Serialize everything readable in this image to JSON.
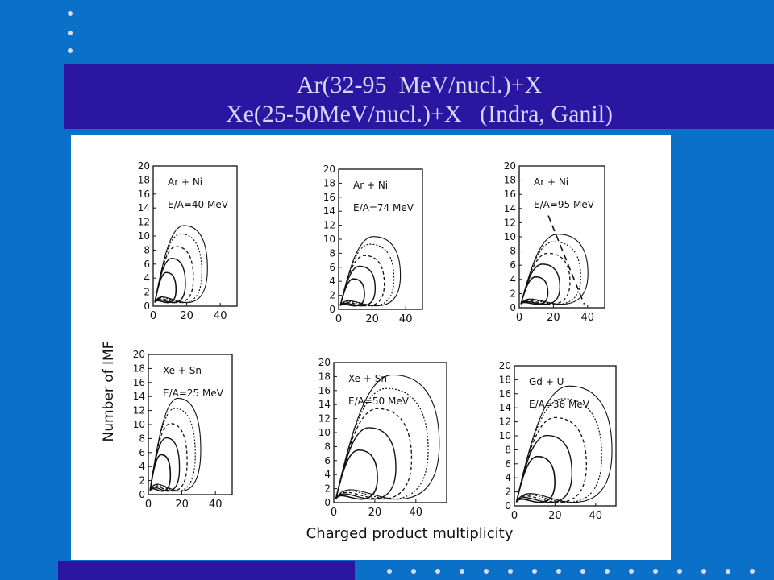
{
  "slide": {
    "title_line1": "Ar(32-95  MeV/nucl.)+X",
    "title_line2": "Xe(25-50MeV/nucl.)+X   (Indra, Ganil)",
    "colors": {
      "background": "#0a70c8",
      "title_bar": "#2a16a0",
      "title_text": "#d8d8ff",
      "figure_bg": "#ffffff"
    }
  },
  "chart_data": {
    "type": "contour",
    "ylabel": "Number of IMF",
    "xlabel": "Charged product multiplicity",
    "panels": [
      {
        "label1": "Ar + Ni",
        "label2": "E/A=40 MeV",
        "xticks": [
          "0",
          "20",
          "40"
        ],
        "yticks": [
          "20",
          "18",
          "16",
          "14",
          "12",
          "10",
          "8",
          "6",
          "4",
          "2",
          "0"
        ],
        "xlim": [
          0,
          50
        ],
        "ylim": [
          0,
          20
        ],
        "peak": [
          20,
          3
        ],
        "reach": [
          28,
          10
        ],
        "dashed_line": false
      },
      {
        "label1": "Ar + Ni",
        "label2": "E/A=74 MeV",
        "xticks": [
          "0",
          "20",
          "40"
        ],
        "yticks": [
          "20",
          "18",
          "16",
          "14",
          "12",
          "10",
          "8",
          "6",
          "4",
          "2",
          "0"
        ],
        "xlim": [
          0,
          50
        ],
        "ylim": [
          0,
          20
        ],
        "peak": [
          22,
          3
        ],
        "reach": [
          32,
          9
        ],
        "dashed_line": false
      },
      {
        "label1": "Ar + Ni",
        "label2": "E/A=95 MeV",
        "xticks": [
          "0",
          "20",
          "40"
        ],
        "yticks": [
          "20",
          "18",
          "16",
          "14",
          "12",
          "10",
          "8",
          "6",
          "4",
          "2",
          "0"
        ],
        "xlim": [
          0,
          50
        ],
        "ylim": [
          0,
          20
        ],
        "peak": [
          22,
          3
        ],
        "reach": [
          35,
          9
        ],
        "dashed_line": true
      },
      {
        "label1": "Xe + Sn",
        "label2": "E/A=25 MeV",
        "xticks": [
          "0",
          "20",
          "40"
        ],
        "yticks": [
          "20",
          "18",
          "16",
          "14",
          "12",
          "10",
          "8",
          "6",
          "4",
          "2",
          "0"
        ],
        "xlim": [
          0,
          50
        ],
        "ylim": [
          0,
          20
        ],
        "peak": [
          18,
          5
        ],
        "reach": [
          27,
          12
        ],
        "dashed_line": false
      },
      {
        "label1": "Xe + Sn",
        "label2": "E/A=50 MeV",
        "xticks": [
          "0",
          "20",
          "40"
        ],
        "yticks": [
          "20",
          "18",
          "16",
          "14",
          "12",
          "10",
          "8",
          "6",
          "4",
          "2",
          "0"
        ],
        "xlim": [
          0,
          55
        ],
        "ylim": [
          0,
          20
        ],
        "peak": [
          30,
          8
        ],
        "reach": [
          45,
          16
        ],
        "dashed_line": false
      },
      {
        "label1": "Gd + U",
        "label2": "E/A=36 MeV",
        "xticks": [
          "0",
          "20",
          "40"
        ],
        "yticks": [
          "20",
          "18",
          "16",
          "14",
          "12",
          "10",
          "8",
          "6",
          "4",
          "2",
          "0"
        ],
        "xlim": [
          0,
          50
        ],
        "ylim": [
          0,
          20
        ],
        "peak": [
          25,
          6
        ],
        "reach": [
          42,
          15
        ],
        "dashed_line": false
      }
    ]
  }
}
